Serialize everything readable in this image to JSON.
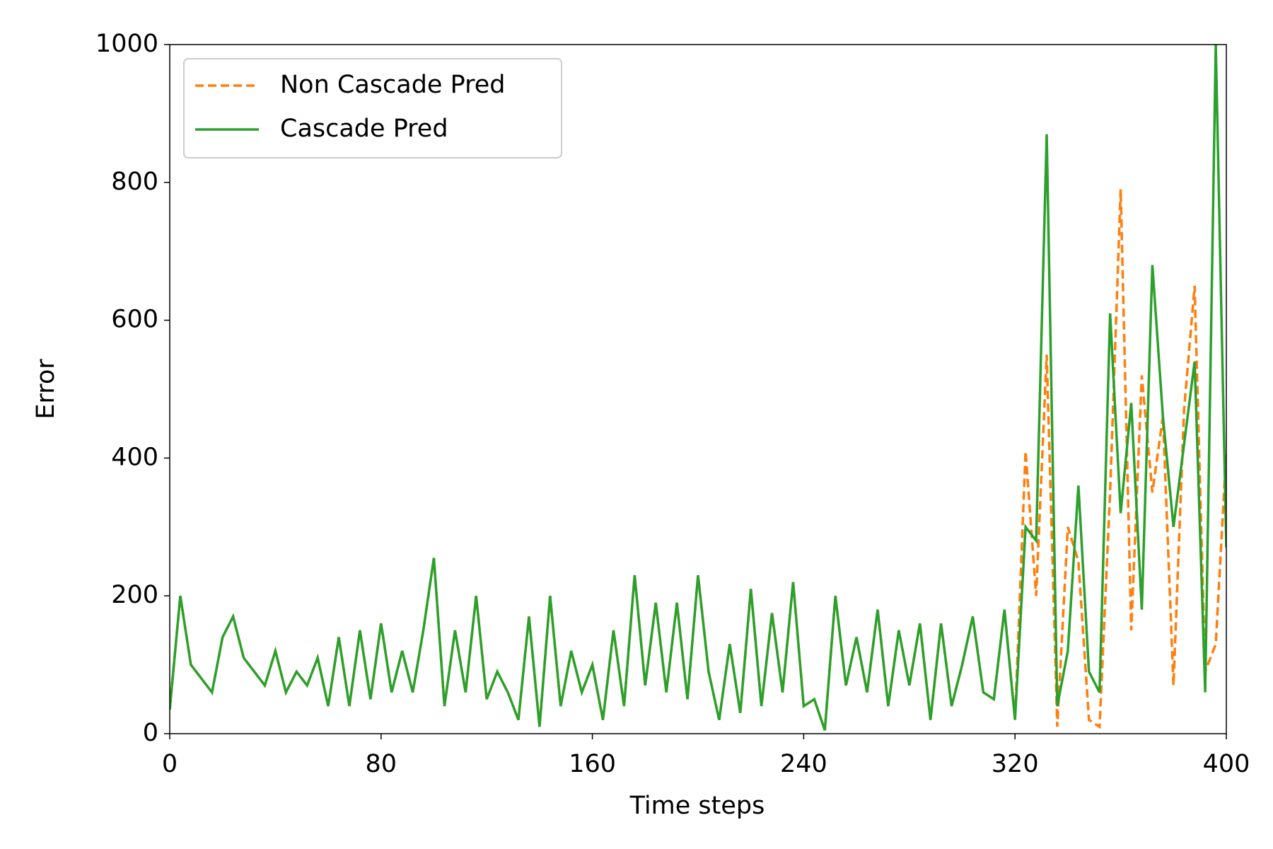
{
  "chart_data": {
    "type": "line",
    "xlabel": "Time steps",
    "ylabel": "Error",
    "x": [
      0,
      4,
      8,
      12,
      16,
      20,
      24,
      28,
      32,
      36,
      40,
      44,
      48,
      52,
      56,
      60,
      64,
      68,
      72,
      76,
      80,
      84,
      88,
      92,
      96,
      100,
      104,
      108,
      112,
      116,
      120,
      124,
      128,
      132,
      136,
      140,
      144,
      148,
      152,
      156,
      160,
      164,
      168,
      172,
      176,
      180,
      184,
      188,
      192,
      196,
      200,
      204,
      208,
      212,
      216,
      220,
      224,
      228,
      232,
      236,
      240,
      244,
      248,
      252,
      256,
      260,
      264,
      268,
      272,
      276,
      280,
      284,
      288,
      292,
      296,
      300,
      304,
      308,
      312,
      316,
      320,
      324,
      328,
      332,
      336,
      340,
      344,
      348,
      352,
      356,
      360,
      364,
      368,
      372,
      376,
      380,
      384,
      388,
      392,
      396,
      400
    ],
    "series": [
      {
        "name": "Non Cascade Pred",
        "color": "#ff7f0e",
        "dash": true,
        "values": [
          35,
          200,
          100,
          80,
          60,
          140,
          170,
          110,
          90,
          70,
          120,
          60,
          90,
          70,
          110,
          40,
          140,
          40,
          150,
          50,
          160,
          60,
          120,
          60,
          150,
          255,
          40,
          150,
          60,
          200,
          50,
          90,
          60,
          20,
          170,
          10,
          200,
          40,
          120,
          60,
          100,
          20,
          150,
          40,
          230,
          70,
          190,
          60,
          190,
          50,
          230,
          90,
          20,
          130,
          30,
          210,
          40,
          175,
          60,
          220,
          40,
          50,
          5,
          200,
          70,
          140,
          60,
          180,
          40,
          150,
          70,
          160,
          20,
          160,
          40,
          100,
          170,
          60,
          50,
          180,
          20,
          410,
          200,
          550,
          10,
          300,
          250,
          20,
          10,
          350,
          790,
          150,
          520,
          350,
          460,
          70,
          470,
          650,
          90,
          130,
          410
        ]
      },
      {
        "name": "Cascade Pred",
        "color": "#2ca02c",
        "dash": false,
        "values": [
          35,
          200,
          100,
          80,
          60,
          140,
          170,
          110,
          90,
          70,
          120,
          60,
          90,
          70,
          110,
          40,
          140,
          40,
          150,
          50,
          160,
          60,
          120,
          60,
          150,
          255,
          40,
          150,
          60,
          200,
          50,
          90,
          60,
          20,
          170,
          10,
          200,
          40,
          120,
          60,
          100,
          20,
          150,
          40,
          230,
          70,
          190,
          60,
          190,
          50,
          230,
          90,
          20,
          130,
          30,
          210,
          40,
          175,
          60,
          220,
          40,
          50,
          5,
          200,
          70,
          140,
          60,
          180,
          40,
          150,
          70,
          160,
          20,
          160,
          40,
          100,
          170,
          60,
          50,
          180,
          20,
          300,
          280,
          870,
          40,
          120,
          360,
          90,
          60,
          610,
          320,
          480,
          180,
          680,
          460,
          300,
          420,
          540,
          60,
          1000,
          270
        ]
      }
    ],
    "xlim": [
      0,
      400
    ],
    "xticks": [
      0,
      80,
      160,
      240,
      320,
      400
    ],
    "ylim": [
      0,
      1000
    ],
    "yticks": [
      0,
      200,
      400,
      600,
      800,
      1000
    ],
    "grid": false,
    "legend": "upper left"
  }
}
